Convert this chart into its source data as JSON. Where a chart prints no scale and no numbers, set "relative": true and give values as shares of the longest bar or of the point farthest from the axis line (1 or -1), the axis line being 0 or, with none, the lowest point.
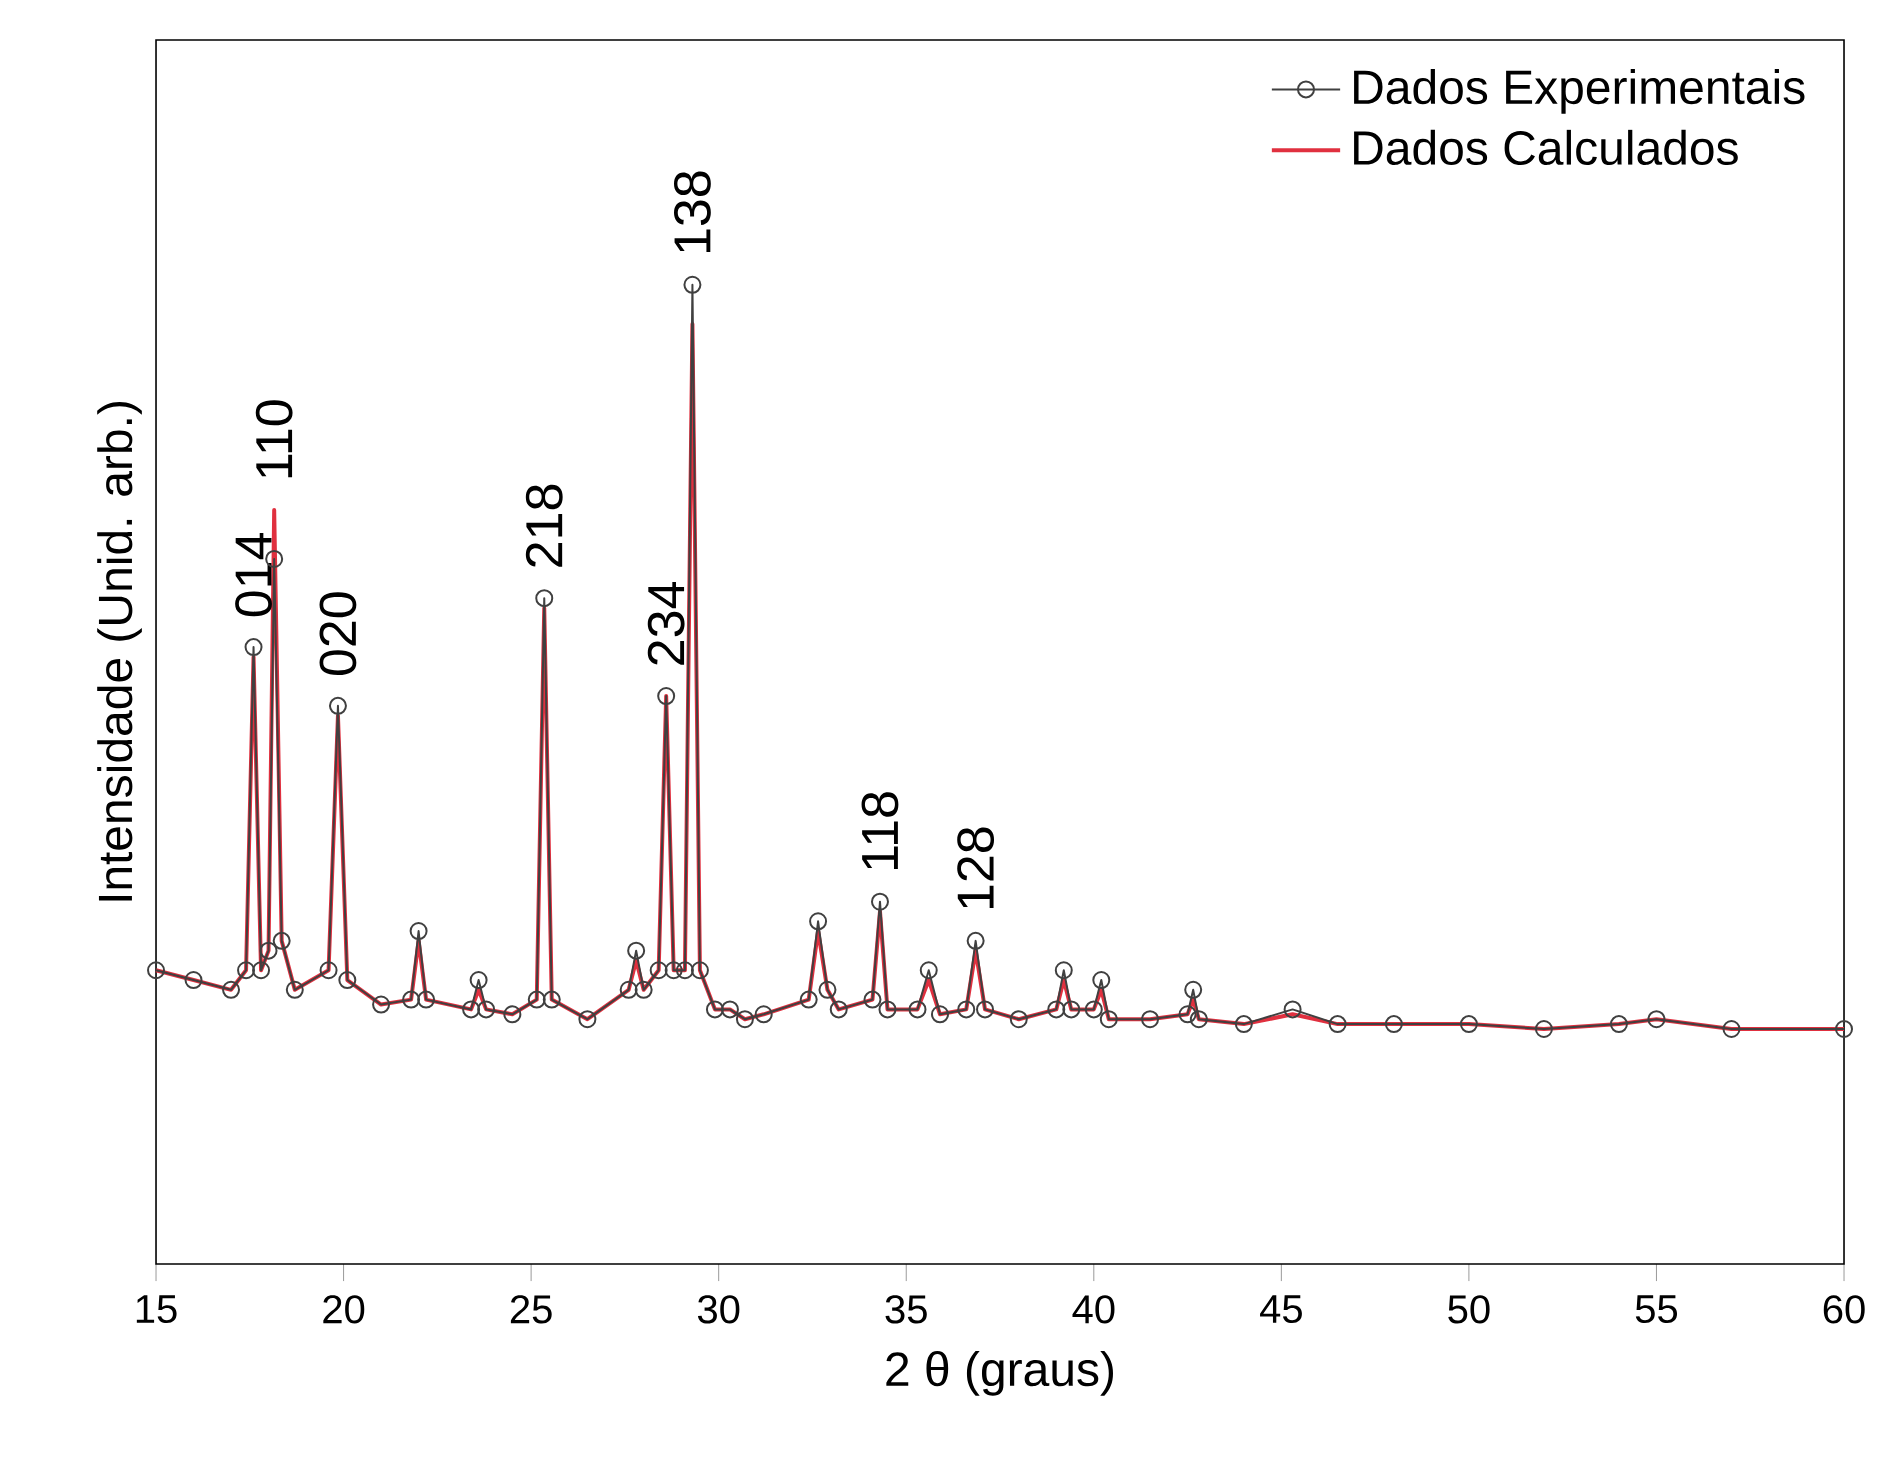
{
  "chart_data": {
    "type": "line",
    "relative": true,
    "xlabel": "2 θ (graus)",
    "ylabel": "Intensidade (Unid. arb.)",
    "xlim": [
      15,
      60
    ],
    "xticks": [
      15,
      20,
      25,
      30,
      35,
      40,
      45,
      50,
      55,
      60
    ],
    "tick_labels": "x",
    "legend": "top right",
    "grid": false,
    "x": [
      15,
      16,
      17,
      17.4,
      17.6,
      17.8,
      18.0,
      18.15,
      18.35,
      18.7,
      19.6,
      19.85,
      20.1,
      21,
      21.8,
      22.0,
      22.2,
      23.4,
      23.6,
      23.8,
      24.5,
      25.15,
      25.35,
      25.55,
      26.5,
      27.6,
      27.8,
      28.0,
      28.4,
      28.6,
      28.8,
      29.1,
      29.3,
      29.5,
      29.9,
      30.3,
      30.7,
      31.2,
      32.4,
      32.65,
      32.9,
      33.2,
      34.1,
      34.3,
      34.5,
      35.3,
      35.6,
      35.9,
      36.6,
      36.85,
      37.1,
      38,
      39.0,
      39.2,
      39.4,
      40.0,
      40.2,
      40.4,
      41.5,
      42.5,
      42.65,
      42.8,
      44,
      45.3,
      46.5,
      48,
      50,
      52,
      54,
      55,
      57,
      60
    ],
    "series": [
      {
        "name": "Dados Experimentais",
        "color": "#404040",
        "marker": "circle",
        "values": [
          0.3,
          0.29,
          0.28,
          0.3,
          0.63,
          0.3,
          0.32,
          0.72,
          0.33,
          0.28,
          0.3,
          0.57,
          0.29,
          0.265,
          0.27,
          0.34,
          0.27,
          0.26,
          0.29,
          0.26,
          0.255,
          0.27,
          0.68,
          0.27,
          0.25,
          0.28,
          0.32,
          0.28,
          0.3,
          0.58,
          0.3,
          0.3,
          1.0,
          0.3,
          0.26,
          0.26,
          0.25,
          0.255,
          0.27,
          0.35,
          0.28,
          0.26,
          0.27,
          0.37,
          0.26,
          0.26,
          0.3,
          0.255,
          0.26,
          0.33,
          0.26,
          0.25,
          0.26,
          0.3,
          0.26,
          0.26,
          0.29,
          0.25,
          0.25,
          0.255,
          0.28,
          0.25,
          0.245,
          0.26,
          0.245,
          0.245,
          0.245,
          0.24,
          0.245,
          0.25,
          0.24,
          0.24
        ]
      },
      {
        "name": "Dados Calculados",
        "color": "#e0303f",
        "marker": "none",
        "values": [
          0.3,
          0.29,
          0.28,
          0.3,
          0.62,
          0.3,
          0.32,
          0.77,
          0.33,
          0.28,
          0.3,
          0.56,
          0.29,
          0.265,
          0.27,
          0.33,
          0.27,
          0.26,
          0.28,
          0.26,
          0.255,
          0.27,
          0.67,
          0.27,
          0.25,
          0.28,
          0.31,
          0.28,
          0.3,
          0.58,
          0.3,
          0.3,
          0.96,
          0.3,
          0.26,
          0.26,
          0.25,
          0.255,
          0.27,
          0.34,
          0.28,
          0.26,
          0.27,
          0.36,
          0.26,
          0.26,
          0.29,
          0.255,
          0.26,
          0.32,
          0.26,
          0.25,
          0.26,
          0.29,
          0.26,
          0.26,
          0.28,
          0.25,
          0.25,
          0.255,
          0.27,
          0.25,
          0.245,
          0.255,
          0.245,
          0.245,
          0.245,
          0.24,
          0.245,
          0.25,
          0.24,
          0.24
        ]
      }
    ],
    "annotations": [
      {
        "text": "014",
        "x": 17.6,
        "y": 0.63
      },
      {
        "text": "110",
        "x": 18.15,
        "y": 0.77
      },
      {
        "text": "020",
        "x": 19.85,
        "y": 0.57
      },
      {
        "text": "218",
        "x": 25.35,
        "y": 0.68
      },
      {
        "text": "234",
        "x": 28.6,
        "y": 0.58
      },
      {
        "text": "138",
        "x": 29.3,
        "y": 1.0
      },
      {
        "text": "118",
        "x": 34.3,
        "y": 0.37
      },
      {
        "text": "128",
        "x": 36.85,
        "y": 0.33
      }
    ]
  }
}
